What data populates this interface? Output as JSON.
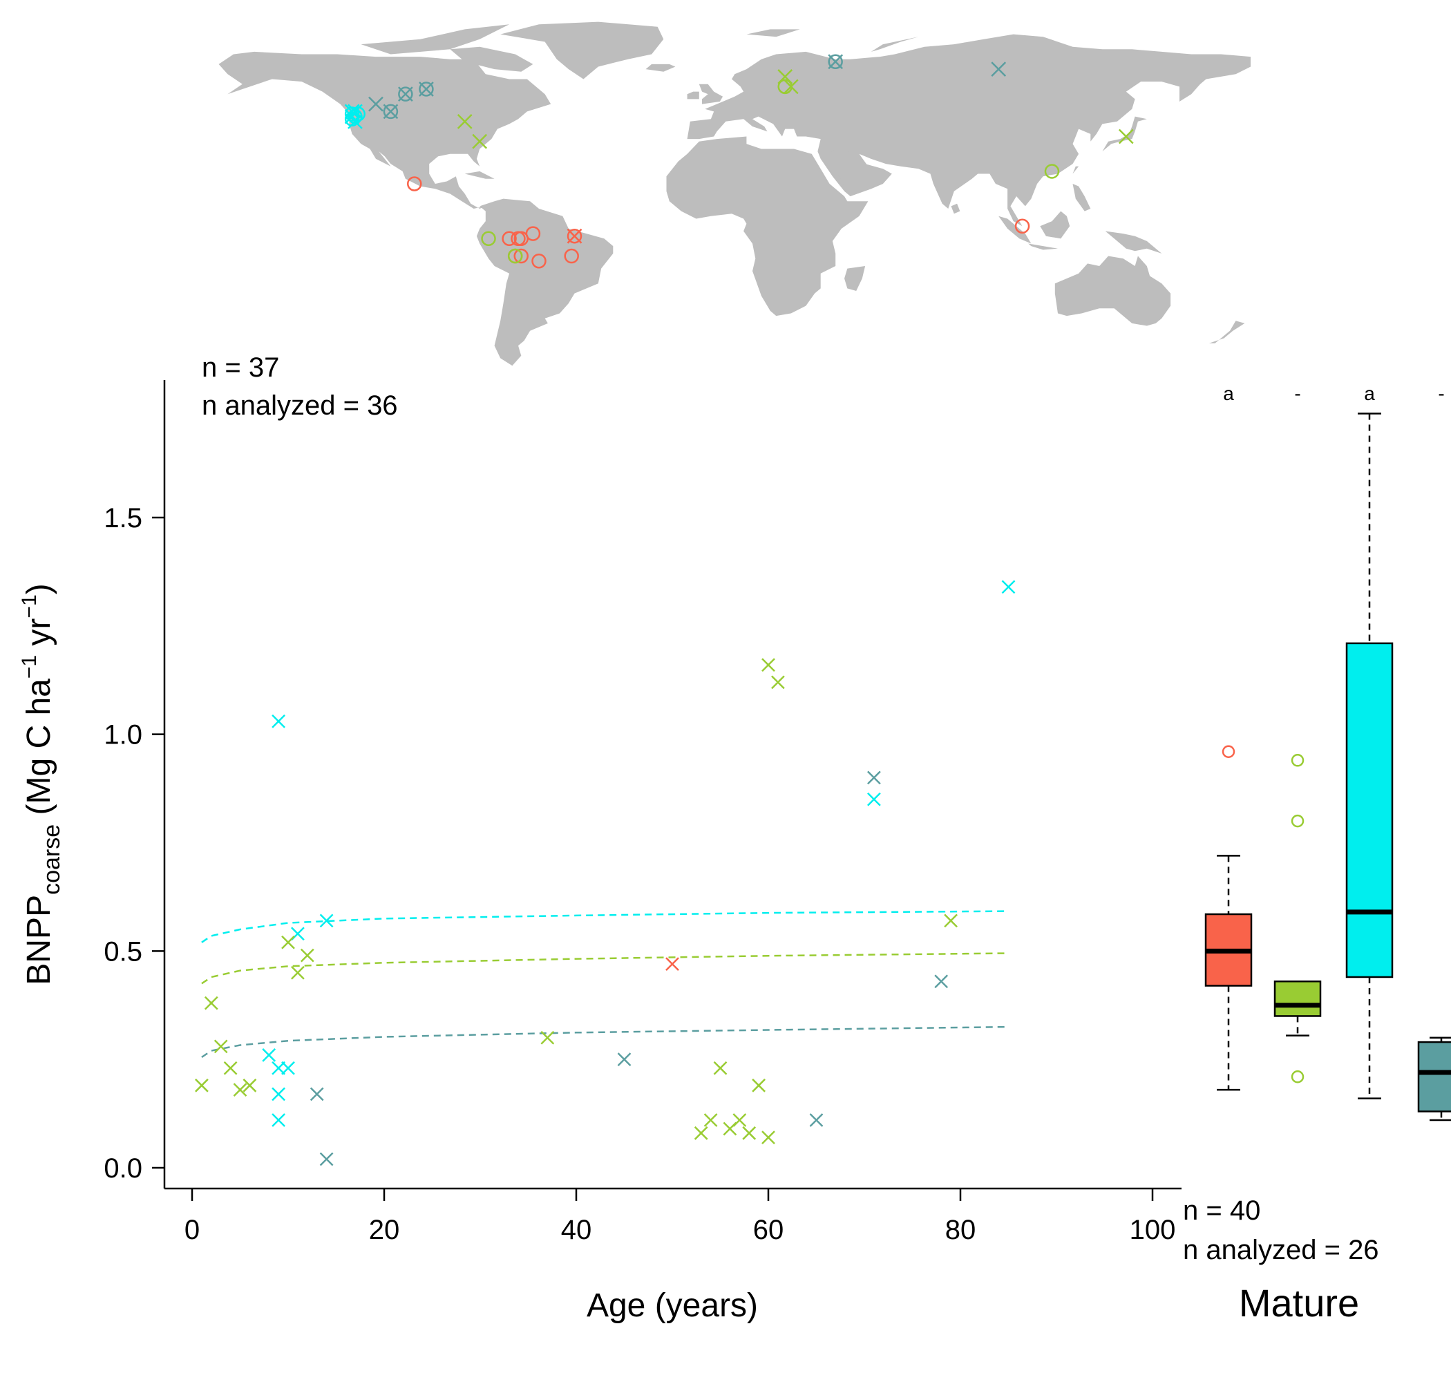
{
  "colors": {
    "tropical": "#f9634a",
    "temperate_broadleaf": "#99cc33",
    "temperate_conifer": "#00eeee",
    "boreal": "#5b9ea0",
    "land": "#bdbdbd"
  },
  "map": {
    "sites": [
      {
        "lon": -123,
        "lat": 46,
        "group": "temperate_conifer",
        "marker": "circle"
      },
      {
        "lon": -123,
        "lat": 44,
        "group": "temperate_conifer",
        "marker": "circle"
      },
      {
        "lon": -122,
        "lat": 45,
        "group": "temperate_conifer",
        "marker": "circle"
      },
      {
        "lon": -123,
        "lat": 47,
        "group": "temperate_conifer",
        "marker": "cross"
      },
      {
        "lon": -122,
        "lat": 43,
        "group": "temperate_conifer",
        "marker": "cross"
      },
      {
        "lon": -121,
        "lat": 46,
        "group": "temperate_conifer",
        "marker": "circle"
      },
      {
        "lon": -122,
        "lat": 47,
        "group": "temperate_conifer",
        "marker": "cross"
      },
      {
        "lon": -123,
        "lat": 45,
        "group": "temperate_conifer",
        "marker": "cross"
      },
      {
        "lon": -115,
        "lat": 50,
        "group": "boreal",
        "marker": "cross"
      },
      {
        "lon": -105,
        "lat": 54,
        "group": "boreal",
        "marker": "circle"
      },
      {
        "lon": -105,
        "lat": 54,
        "group": "boreal",
        "marker": "cross"
      },
      {
        "lon": -98,
        "lat": 56,
        "group": "boreal",
        "marker": "circle"
      },
      {
        "lon": -98,
        "lat": 56,
        "group": "boreal",
        "marker": "cross"
      },
      {
        "lon": -110,
        "lat": 47,
        "group": "boreal",
        "marker": "circle"
      },
      {
        "lon": -110,
        "lat": 47,
        "group": "boreal",
        "marker": "cross"
      },
      {
        "lon": -85,
        "lat": 43,
        "group": "temperate_broadleaf",
        "marker": "cross"
      },
      {
        "lon": -80,
        "lat": 35,
        "group": "temperate_broadleaf",
        "marker": "cross"
      },
      {
        "lon": -102,
        "lat": 18,
        "group": "tropical",
        "marker": "circle"
      },
      {
        "lon": -62,
        "lat": -2,
        "group": "tropical",
        "marker": "circle"
      },
      {
        "lon": -70,
        "lat": -4,
        "group": "tropical",
        "marker": "circle"
      },
      {
        "lon": -67,
        "lat": -4,
        "group": "tropical",
        "marker": "circle"
      },
      {
        "lon": -66,
        "lat": -4,
        "group": "tropical",
        "marker": "circle"
      },
      {
        "lon": -48,
        "lat": -3,
        "group": "tropical",
        "marker": "circle"
      },
      {
        "lon": -48,
        "lat": -3,
        "group": "tropical",
        "marker": "cross"
      },
      {
        "lon": -68,
        "lat": -11,
        "group": "tropical",
        "marker": "circle"
      },
      {
        "lon": -66,
        "lat": -11,
        "group": "tropical",
        "marker": "circle"
      },
      {
        "lon": -60,
        "lat": -13,
        "group": "tropical",
        "marker": "circle"
      },
      {
        "lon": -49,
        "lat": -11,
        "group": "tropical",
        "marker": "circle"
      },
      {
        "lon": -77,
        "lat": -4,
        "group": "temperate_broadleaf",
        "marker": "circle"
      },
      {
        "lon": -68,
        "lat": -11,
        "group": "temperate_broadleaf",
        "marker": "circle"
      },
      {
        "lon": 23,
        "lat": 61,
        "group": "temperate_broadleaf",
        "marker": "cross"
      },
      {
        "lon": 23,
        "lat": 57,
        "group": "temperate_broadleaf",
        "marker": "circle"
      },
      {
        "lon": 25,
        "lat": 57,
        "group": "temperate_broadleaf",
        "marker": "cross"
      },
      {
        "lon": 40,
        "lat": 67,
        "group": "boreal",
        "marker": "circle"
      },
      {
        "lon": 40,
        "lat": 67,
        "group": "boreal",
        "marker": "cross"
      },
      {
        "lon": 95,
        "lat": 64,
        "group": "boreal",
        "marker": "cross"
      },
      {
        "lon": 113,
        "lat": 23,
        "group": "temperate_broadleaf",
        "marker": "circle"
      },
      {
        "lon": 138,
        "lat": 37,
        "group": "temperate_broadleaf",
        "marker": "cross"
      },
      {
        "lon": 103,
        "lat": 1,
        "group": "tropical",
        "marker": "circle"
      }
    ]
  },
  "left_panel": {
    "n_label": "n = 37",
    "n_analyzed_label": "n analyzed = 36"
  },
  "right_panel": {
    "n_label": "n = 40",
    "n_analyzed_label": "n analyzed = 26",
    "title": "Mature"
  },
  "axes": {
    "xlabel": "Age (years)",
    "ylabel_main": "BNPP",
    "ylabel_sub": "coarse",
    "ylabel_rest": " (Mg C ha",
    "ylabel_exp1": "−1",
    "ylabel_yr": " yr",
    "ylabel_exp2": "−1",
    "ylabel_close": ")"
  },
  "chart_data": [
    {
      "type": "scatter",
      "xlabel": "Age (years)",
      "ylabel": "BNPPcoarse (Mg C ha-1 yr-1)",
      "xlim": [
        0,
        100
      ],
      "ylim": [
        0,
        1.75
      ],
      "xticks": [
        0,
        20,
        40,
        60,
        80,
        100
      ],
      "yticks": [
        0.0,
        0.5,
        1.0,
        1.5
      ],
      "xtick_labels": [
        "0",
        "20",
        "40",
        "60",
        "80",
        "100"
      ],
      "ytick_labels": [
        "0.0",
        "0.5",
        "1.0",
        "1.5"
      ],
      "series": [
        {
          "group": "temperate_conifer",
          "x": [
            9,
            9,
            8,
            9,
            9,
            10,
            11,
            14,
            71,
            85
          ],
          "y": [
            1.03,
            0.23,
            0.26,
            0.17,
            0.11,
            0.23,
            0.54,
            0.57,
            0.85,
            1.34
          ]
        },
        {
          "group": "temperate_broadleaf",
          "x": [
            1,
            2,
            3,
            4,
            5,
            6,
            10,
            11,
            12,
            37,
            53,
            54,
            55,
            56,
            57,
            58,
            59,
            60,
            60,
            61,
            79
          ],
          "y": [
            0.19,
            0.38,
            0.28,
            0.23,
            0.18,
            0.19,
            0.52,
            0.45,
            0.49,
            0.3,
            0.08,
            0.11,
            0.23,
            0.09,
            0.11,
            0.08,
            0.19,
            0.07,
            1.16,
            1.12,
            0.57
          ]
        },
        {
          "group": "boreal",
          "x": [
            13,
            14,
            45,
            65,
            71,
            78
          ],
          "y": [
            0.17,
            0.02,
            0.25,
            0.11,
            0.9,
            0.43
          ]
        },
        {
          "group": "tropical",
          "x": [
            50
          ],
          "y": [
            0.47
          ]
        }
      ],
      "fits": [
        {
          "group": "temperate_conifer",
          "x": [
            1,
            2,
            5,
            10,
            20,
            40,
            60,
            85
          ],
          "y": [
            0.52,
            0.535,
            0.55,
            0.565,
            0.575,
            0.582,
            0.588,
            0.592
          ]
        },
        {
          "group": "temperate_broadleaf",
          "x": [
            1,
            2,
            5,
            10,
            20,
            40,
            60,
            85
          ],
          "y": [
            0.425,
            0.44,
            0.455,
            0.465,
            0.473,
            0.482,
            0.489,
            0.495
          ]
        },
        {
          "group": "boreal",
          "x": [
            1,
            2,
            5,
            10,
            20,
            40,
            60,
            85
          ],
          "y": [
            0.255,
            0.27,
            0.283,
            0.293,
            0.302,
            0.312,
            0.318,
            0.325
          ]
        }
      ]
    },
    {
      "type": "box",
      "title": "Mature",
      "ylim": [
        0,
        1.75
      ],
      "boxes": [
        {
          "group": "tropical",
          "letter": "a",
          "whisker_low": 0.18,
          "q1": 0.42,
          "median": 0.5,
          "q3": 0.585,
          "whisker_high": 0.72,
          "outliers": [
            0.96
          ]
        },
        {
          "group": "temperate_broadleaf",
          "letter": "-",
          "whisker_low": 0.305,
          "q1": 0.35,
          "median": 0.375,
          "q3": 0.43,
          "whisker_high": 0.43,
          "outliers": [
            0.94,
            0.8,
            0.21
          ]
        },
        {
          "group": "temperate_conifer",
          "letter": "a",
          "whisker_low": 0.16,
          "q1": 0.44,
          "median": 0.59,
          "q3": 1.21,
          "whisker_high": 1.74,
          "outliers": []
        },
        {
          "group": "boreal",
          "letter": "-",
          "whisker_low": 0.11,
          "q1": 0.13,
          "median": 0.22,
          "q3": 0.29,
          "whisker_high": 0.3,
          "outliers": []
        }
      ]
    }
  ]
}
